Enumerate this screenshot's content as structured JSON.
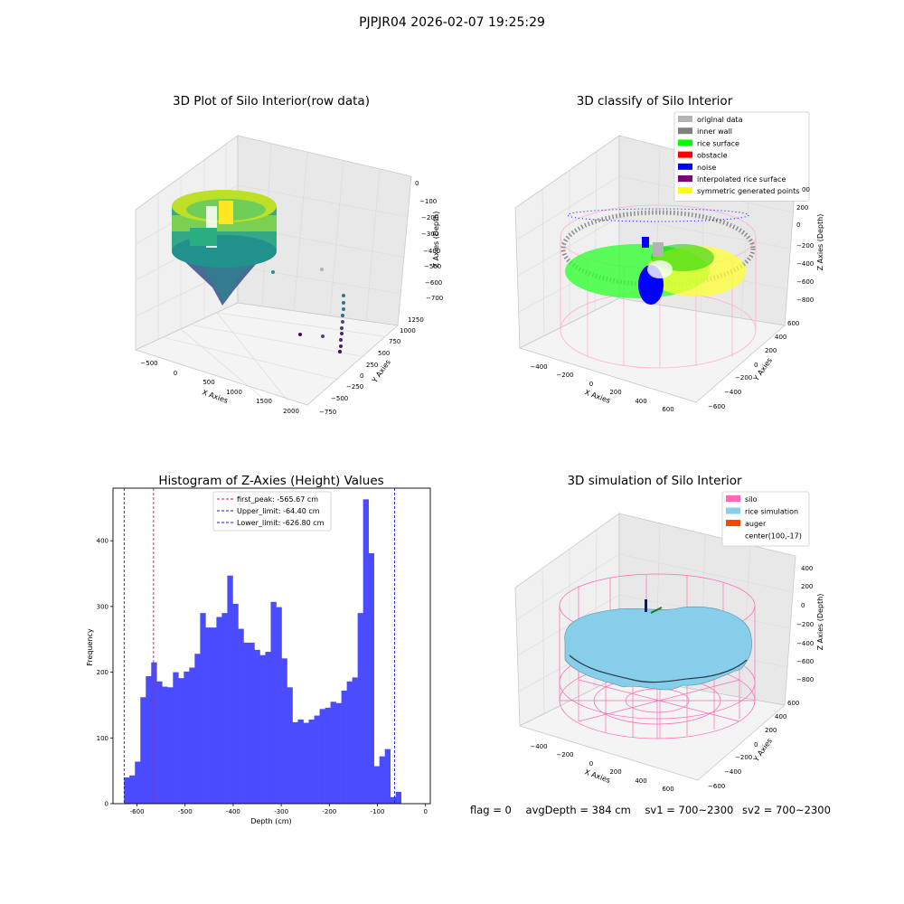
{
  "figure": {
    "suptitle": "PJPJR04 2026-02-07 19:25:29",
    "status": {
      "flag": "flag = 0",
      "avg_depth": "avgDepth = 384 cm",
      "sv1": "sv1 = 700~2300",
      "sv2": "sv2 = 700~2300"
    }
  },
  "colors": {
    "hist_bar": "#4b4bff",
    "first_peak": "#e8192c",
    "limits": "#1a1adc",
    "silo": "#ff69b4",
    "rice_sim": "#87ceeb",
    "auger": "#ff4500",
    "rice_surface": "#00ff00",
    "noise": "#0000ff",
    "obstacle": "#ff0000",
    "interpolated": "#800080",
    "symmetric": "#ffff00",
    "original": "#b3b3b3",
    "inner_wall": "#808080"
  },
  "panels": {
    "raw": {
      "title": "3D Plot of Silo Interior(row data)",
      "xlabel": "X Axies",
      "ylabel": "Y Axies",
      "zlabel": "Z Axies (Depth)",
      "xticks": [
        "−500",
        "0",
        "500",
        "1000",
        "1500",
        "2000"
      ],
      "yticks": [
        "−750",
        "−500",
        "−250",
        "0",
        "250",
        "500",
        "750",
        "1000",
        "1250"
      ],
      "zticks": [
        "0",
        "−100",
        "−200",
        "−300",
        "−400",
        "−500",
        "−600",
        "−700"
      ]
    },
    "classify": {
      "title": "3D classify of Silo Interior",
      "xlabel": "X Axies",
      "ylabel": "Y Axies",
      "zlabel": "Z Axies (Depth)",
      "xticks": [
        "−400",
        "−200",
        "0",
        "200",
        "400",
        "600"
      ],
      "yticks": [
        "−600",
        "−400",
        "−200",
        "0",
        "200",
        "400",
        "600"
      ],
      "zticks": [
        "200",
        "0",
        "−200",
        "−400",
        "−600",
        "−800"
      ],
      "ztick_partial": "00",
      "legend": [
        {
          "label": "original data",
          "color": "#b3b3b3"
        },
        {
          "label": "inner wall",
          "color": "#808080"
        },
        {
          "label": "rice surface",
          "color": "#00ff00"
        },
        {
          "label": "obstacle",
          "color": "#ff0000"
        },
        {
          "label": "noise",
          "color": "#0000ff"
        },
        {
          "label": "interpolated rice surface",
          "color": "#800080"
        },
        {
          "label": "symmetric generated points",
          "color": "#ffff00"
        }
      ]
    },
    "simulation": {
      "title": "3D simulation of Silo Interior",
      "xlabel": "X Axies",
      "ylabel": "Y Axies",
      "zlabel": "Z Axies (Depth)",
      "xticks": [
        "−400",
        "−200",
        "0",
        "200",
        "400",
        "600"
      ],
      "yticks": [
        "−600",
        "−400",
        "−200",
        "0",
        "200",
        "400",
        "600"
      ],
      "zticks": [
        "400",
        "200",
        "0",
        "−200",
        "−400",
        "−600",
        "−800"
      ],
      "legend": [
        {
          "label": "silo",
          "color": "#ff69b4"
        },
        {
          "label": "rice simulation",
          "color": "#87ceeb"
        },
        {
          "label": "auger",
          "color": "#ff4500"
        },
        {
          "label": "center(100,-17)",
          "color": ""
        }
      ]
    }
  },
  "chart_data": [
    {
      "type": "bar",
      "title": "Histogram of Z-Axies (Height) Values",
      "xlabel": "Depth (cm)",
      "ylabel": "Frequency",
      "xlim": [
        -650,
        10
      ],
      "ylim": [
        0,
        480
      ],
      "xticks": [
        -600,
        -500,
        -400,
        -300,
        -200,
        -100,
        0
      ],
      "yticks": [
        0,
        100,
        200,
        300,
        400
      ],
      "bin_start": -627,
      "bin_width": 11.3,
      "values": [
        40,
        43,
        64,
        162,
        194,
        215,
        186,
        178,
        177,
        200,
        191,
        201,
        207,
        228,
        290,
        268,
        268,
        284,
        290,
        347,
        304,
        266,
        245,
        245,
        234,
        226,
        231,
        307,
        299,
        221,
        177,
        124,
        128,
        123,
        128,
        134,
        144,
        146,
        155,
        153,
        172,
        186,
        192,
        290,
        463,
        381,
        57,
        72,
        83,
        10,
        18
      ],
      "reference_lines": [
        {
          "label": "first_peak: -565.67 cm",
          "value": -565.67,
          "color": "#e8192c"
        },
        {
          "label": "Upper_limit: -64.40 cm",
          "value": -64.4,
          "color": "#1a1adc"
        },
        {
          "label": "Lower_limit: -626.80 cm",
          "value": -626.8,
          "color": "#1a1adc"
        }
      ],
      "legend_position": "top-center",
      "grid": false
    }
  ]
}
